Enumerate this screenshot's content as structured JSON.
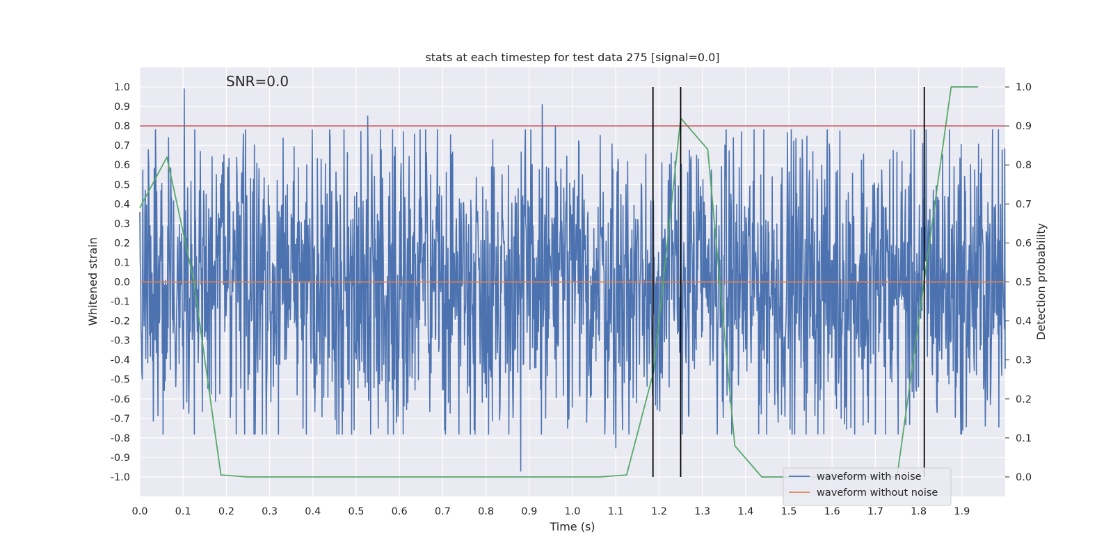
{
  "chart_data": {
    "type": "line",
    "title": "stats at each timestep for test data 275 [signal=0.0]",
    "annotation": "SNR=0.0",
    "xlabel": "Time (s)",
    "ylabel": "Whitened strain",
    "y2label": "Detection probability",
    "xlim": [
      0.0,
      2.0
    ],
    "ylim": [
      -1.1,
      1.1
    ],
    "y2lim": [
      -0.05,
      1.05
    ],
    "xticks": [
      "0.0",
      "0.1",
      "0.2",
      "0.3",
      "0.4",
      "0.5",
      "0.6",
      "0.7",
      "0.8",
      "0.9",
      "1.0",
      "1.1",
      "1.2",
      "1.3",
      "1.4",
      "1.5",
      "1.6",
      "1.7",
      "1.8",
      "1.9"
    ],
    "yticks": [
      "1.0",
      "0.9",
      "0.8",
      "0.7",
      "0.6",
      "0.5",
      "0.4",
      "0.3",
      "0.2",
      "0.1",
      "0.0",
      "-0.1",
      "-0.2",
      "-0.3",
      "-0.4",
      "-0.5",
      "-0.6",
      "-0.7",
      "-0.8",
      "-0.9",
      "-1.0"
    ],
    "y2ticks": [
      "1.0",
      "0.9",
      "0.8",
      "0.7",
      "0.6",
      "0.5",
      "0.4",
      "0.3",
      "0.2",
      "0.1",
      "0.0"
    ],
    "grid": true,
    "legend_position": "lower-right",
    "threshold_line": {
      "y2": 0.9,
      "color": "#c44e52"
    },
    "detection_markers_x": [
      1.186,
      1.25,
      1.813
    ],
    "noise_peaks": [
      {
        "x": 0.103,
        "y": 0.99
      },
      {
        "x": 0.527,
        "y": 0.85
      },
      {
        "x": 0.88,
        "y": -0.97
      },
      {
        "x": 0.93,
        "y": 0.91
      },
      {
        "x": 0.96,
        "y": 0.8
      },
      {
        "x": 0.377,
        "y": -0.75
      },
      {
        "x": 0.551,
        "y": -0.75
      },
      {
        "x": 0.989,
        "y": -0.75
      },
      {
        "x": 1.1,
        "y": -0.85
      },
      {
        "x": 1.13,
        "y": -0.78
      },
      {
        "x": 1.683,
        "y": -0.72
      },
      {
        "x": 1.902,
        "y": -0.76
      },
      {
        "x": 1.033,
        "y": -0.72
      },
      {
        "x": 0.066,
        "y": 0.74
      }
    ],
    "noise_amplitude": 0.6,
    "series": [
      {
        "name": "waveform with noise",
        "color": "#4c72b0",
        "kind": "noise_waveform"
      },
      {
        "name": "waveform without noise",
        "color": "#dd8452",
        "kind": "flat",
        "value": 0.0
      },
      {
        "name": "",
        "color": "#55a868",
        "axis": "y2",
        "x": [
          0.0,
          0.0625,
          0.125,
          0.1875,
          0.25,
          0.3125,
          0.375,
          0.4375,
          0.5,
          0.5625,
          0.625,
          0.6875,
          0.75,
          0.8125,
          0.875,
          0.9375,
          1.0,
          1.0625,
          1.125,
          1.1875,
          1.25,
          1.3125,
          1.375,
          1.4375,
          1.5,
          1.5625,
          1.625,
          1.6875,
          1.75,
          1.8125,
          1.875,
          1.9375
        ],
        "values": [
          0.69,
          0.82,
          0.5,
          0.005,
          0.0,
          0.0,
          0.0,
          0.0,
          0.0,
          0.0,
          0.0,
          0.0,
          0.0,
          0.0,
          0.0,
          0.0,
          0.0,
          0.0,
          0.005,
          0.27,
          0.92,
          0.84,
          0.08,
          0.0,
          0.0,
          0.0,
          0.0,
          0.0,
          0.0,
          0.5,
          1.0,
          1.0
        ]
      }
    ]
  }
}
